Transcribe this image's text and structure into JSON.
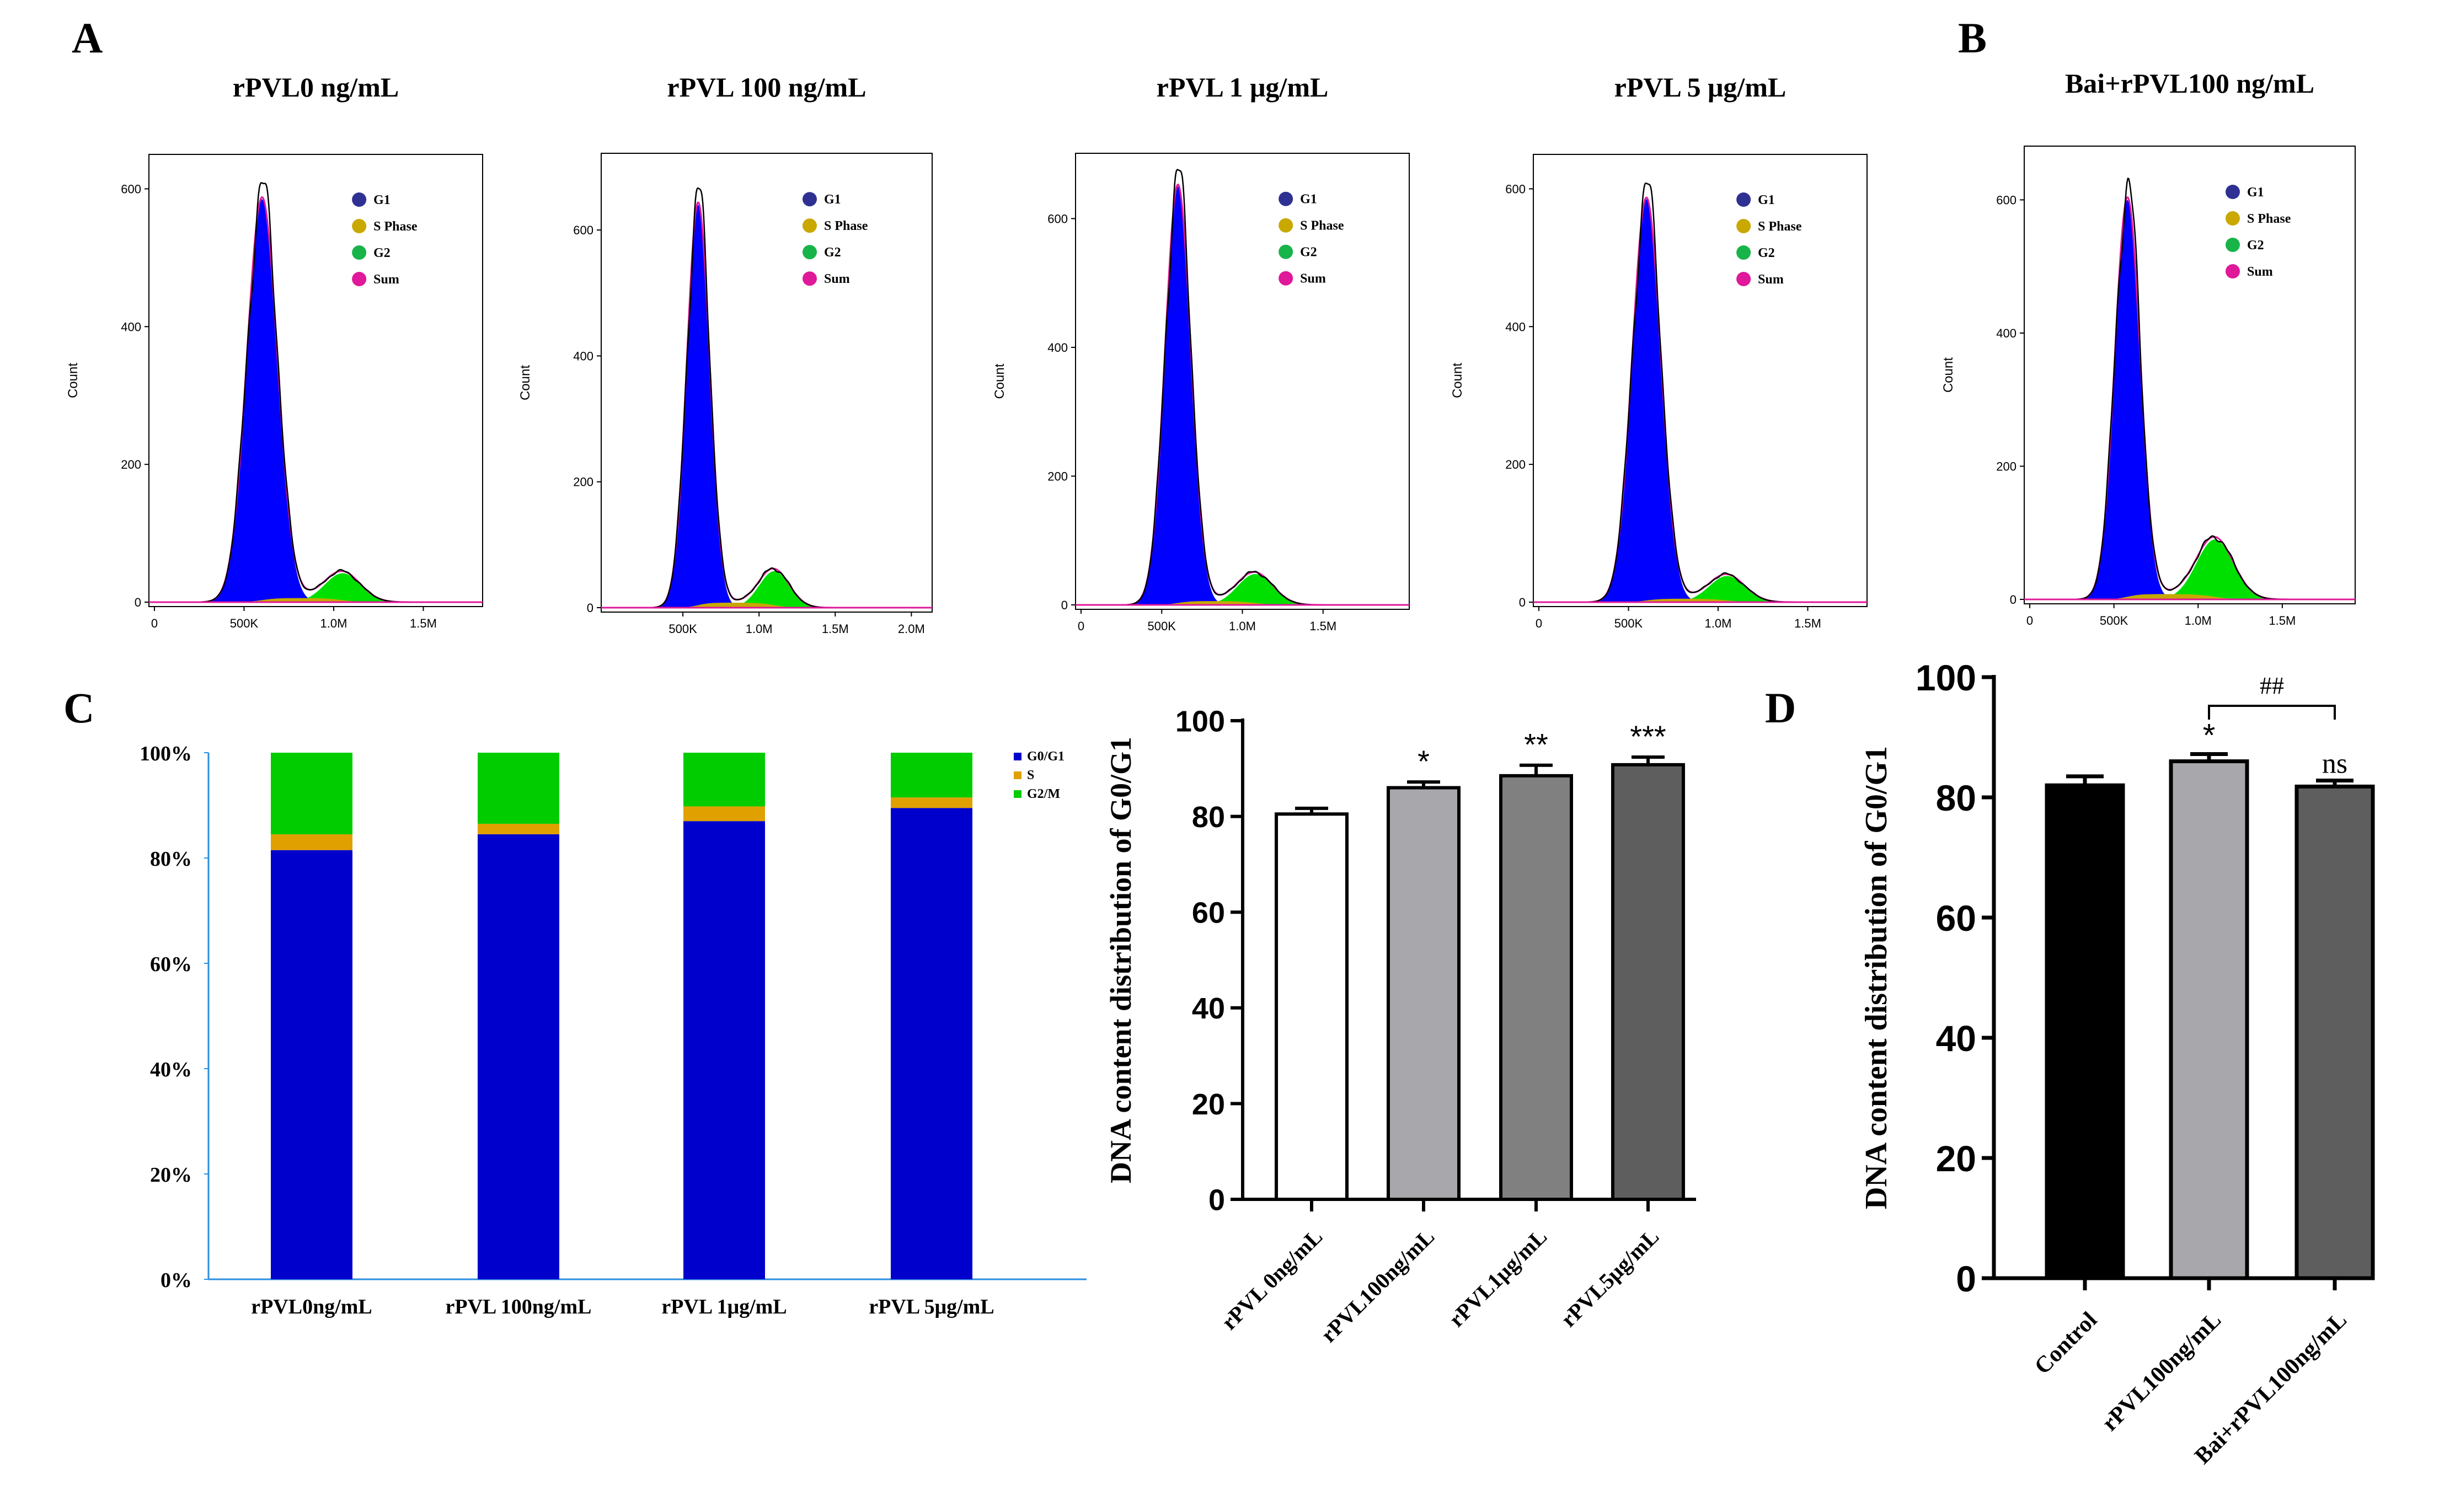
{
  "panel_letters": {
    "a": "A",
    "b": "B",
    "c": "C",
    "d": "D"
  },
  "flow": {
    "ylabel": "Count",
    "legend": [
      "G1",
      "S Phase",
      "G2",
      "Sum"
    ],
    "colors": {
      "g1": "#0000ff",
      "s": "#c8a800",
      "g2": "#00e000",
      "sum": "#e0189a",
      "raw": "#000000",
      "leg_g1": "#2e3192",
      "leg_s": "#c9a800",
      "leg_g2": "#18b44a",
      "leg_sum": "#e0189a"
    },
    "panels": [
      {
        "title": "rPVL0 ng/mL",
        "yticks": [
          "0",
          "200",
          "400",
          "600"
        ],
        "ymax": 630,
        "xmax": 1800000,
        "xticks": [
          [
            "0",
            0
          ],
          [
            "500K",
            500000
          ],
          [
            "1.0M",
            1000000
          ],
          [
            "1.5M",
            1500000
          ]
        ],
        "g1": [
          600000,
          585,
          85000
        ],
        "g2": [
          1050000,
          42,
          100000
        ],
        "s_level": 6
      },
      {
        "title": "rPVL 100 ng/mL",
        "yticks": [
          "0",
          "200",
          "400",
          "600"
        ],
        "ymax": 700,
        "xmax": 2100000,
        "xticks": [
          [
            "500K",
            500000
          ],
          [
            "1.0M",
            1000000
          ],
          [
            "1.5M",
            1500000
          ],
          [
            "2.0M",
            2000000
          ]
        ],
        "g1": [
          600000,
          640,
          75000
        ],
        "g2": [
          1100000,
          58,
          100000
        ],
        "s_level": 8
      },
      {
        "title": "rPVL 1 μg/mL",
        "yticks": [
          "0",
          "200",
          "400",
          "600"
        ],
        "ymax": 680,
        "xmax": 2000000,
        "xticks": [
          [
            "0",
            0
          ],
          [
            "500K",
            500000
          ],
          [
            "1.0M",
            1000000
          ],
          [
            "1.5M",
            1500000
          ]
        ],
        "g1": [
          600000,
          650,
          80000
        ],
        "g2": [
          1080000,
          48,
          110000
        ],
        "s_level": 6
      },
      {
        "title": "rPVL 5 μg/mL",
        "yticks": [
          "0",
          "200",
          "400",
          "600"
        ],
        "ymax": 630,
        "xmax": 1800000,
        "xticks": [
          [
            "0",
            0
          ],
          [
            "500K",
            500000
          ],
          [
            "1.0M",
            1000000
          ],
          [
            "1.5M",
            1500000
          ]
        ],
        "g1": [
          600000,
          585,
          80000
        ],
        "g2": [
          1050000,
          38,
          100000
        ],
        "s_level": 5
      },
      {
        "title": "Bai+rPVL100 ng/mL",
        "yticks": [
          "0",
          "200",
          "400",
          "600"
        ],
        "ymax": 660,
        "xmax": 1900000,
        "xticks": [
          [
            "0",
            0
          ],
          [
            "500K",
            500000
          ],
          [
            "1.0M",
            1000000
          ],
          [
            "1.5M",
            1500000
          ]
        ],
        "g1": [
          580000,
          600,
          75000
        ],
        "g2": [
          1100000,
          90,
          110000
        ],
        "s_level": 8
      }
    ]
  },
  "chart_data": [
    {
      "type": "bar",
      "stacked": true,
      "categories": [
        "rPVL0ng/mL",
        "rPVL 100ng/mL",
        "rPVL 1μg/mL",
        "rPVL 5μg/mL"
      ],
      "series": [
        {
          "name": "G0/G1",
          "color": "#0000cc",
          "values": [
            81.5,
            84.5,
            87.0,
            89.5
          ]
        },
        {
          "name": "S",
          "color": "#e0a000",
          "values": [
            3.0,
            2.0,
            2.8,
            2.0
          ]
        },
        {
          "name": "G2/M",
          "color": "#00cc00",
          "values": [
            15.5,
            13.5,
            10.2,
            8.5
          ]
        }
      ],
      "yticks": [
        "0%",
        "20%",
        "40%",
        "60%",
        "80%",
        "100%"
      ],
      "ylim": [
        0,
        100
      ],
      "grid": false,
      "legend": "top-right"
    },
    {
      "type": "bar",
      "categories": [
        "rPVL 0ng/mL",
        "rPVL100ng/mL",
        "rPVL1μg/mL",
        "rPVL5μg/mL"
      ],
      "values": [
        80.5,
        86.0,
        88.5,
        90.8
      ],
      "errors": [
        1.2,
        1.2,
        2.2,
        1.6
      ],
      "colors": [
        "#ffffff",
        "#a8a8ac",
        "#808080",
        "#5e5e5e"
      ],
      "significance": [
        "",
        "*",
        "**",
        "***"
      ],
      "ylabel": "DNA content distribution of G0/G1",
      "yticks": [
        "0",
        "20",
        "40",
        "60",
        "80",
        "100"
      ],
      "ylim": [
        0,
        100
      ]
    },
    {
      "type": "bar",
      "categories": [
        "Control",
        "rPVL100ng/mL",
        "Bai+rPVL100ng/mL"
      ],
      "values": [
        82.0,
        86.0,
        81.8
      ],
      "errors": [
        1.5,
        1.2,
        1.0
      ],
      "colors": [
        "#000000",
        "#a8a8ac",
        "#5e5e5e"
      ],
      "significance": [
        "",
        "*",
        "ns"
      ],
      "bracket_label": "##",
      "ylabel": "DNA content distribution of G0/G1",
      "yticks": [
        "0",
        "20",
        "40",
        "60",
        "80",
        "100"
      ],
      "ylim": [
        0,
        100
      ]
    }
  ]
}
